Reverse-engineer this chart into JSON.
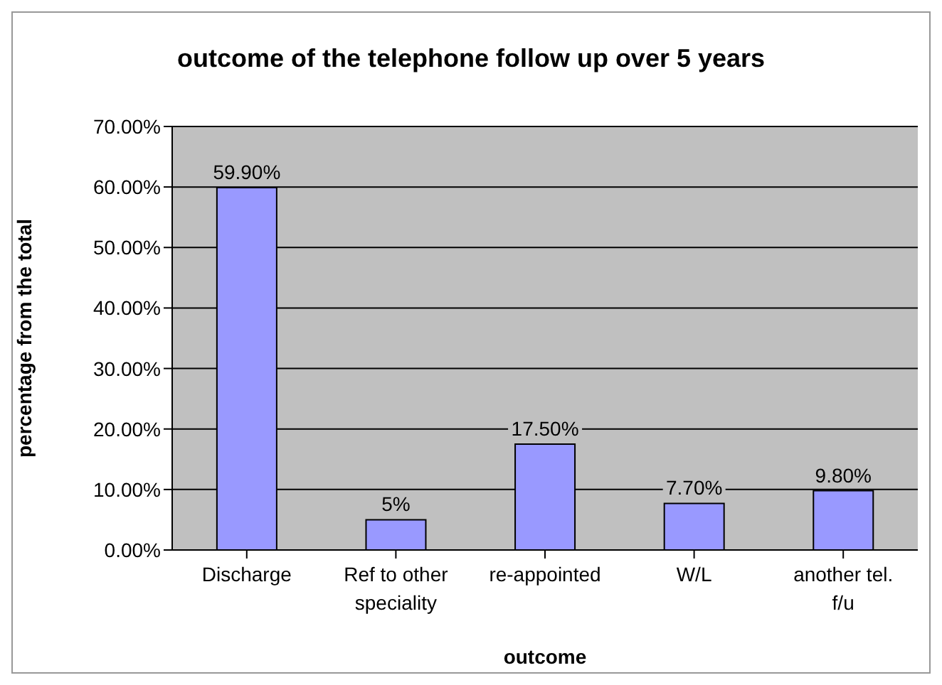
{
  "chart_data": {
    "type": "bar",
    "title": "outcome of the telephone follow up over 5 years",
    "xlabel": "outcome",
    "ylabel": "percentage from the total",
    "categories": [
      "Discharge",
      "Ref to other speciality",
      "re-appointed",
      "W/L",
      "another tel. f/u"
    ],
    "values": [
      59.9,
      5,
      17.5,
      7.7,
      9.8
    ],
    "value_labels": [
      "59.90%",
      "5%",
      "17.50%",
      "7.70%",
      "9.80%"
    ],
    "color": "#9999ff",
    "ylim": [
      0,
      70
    ],
    "yticks": [
      {
        "value": 0,
        "label": "0.00%"
      },
      {
        "value": 10,
        "label": "10.00%"
      },
      {
        "value": 20,
        "label": "20.00%"
      },
      {
        "value": 30,
        "label": "30.00%"
      },
      {
        "value": 40,
        "label": "40.00%"
      },
      {
        "value": 50,
        "label": "50.00%"
      },
      {
        "value": 60,
        "label": "60.00%"
      },
      {
        "value": 70,
        "label": "70.00%"
      }
    ],
    "grid": "y",
    "legend": false
  }
}
